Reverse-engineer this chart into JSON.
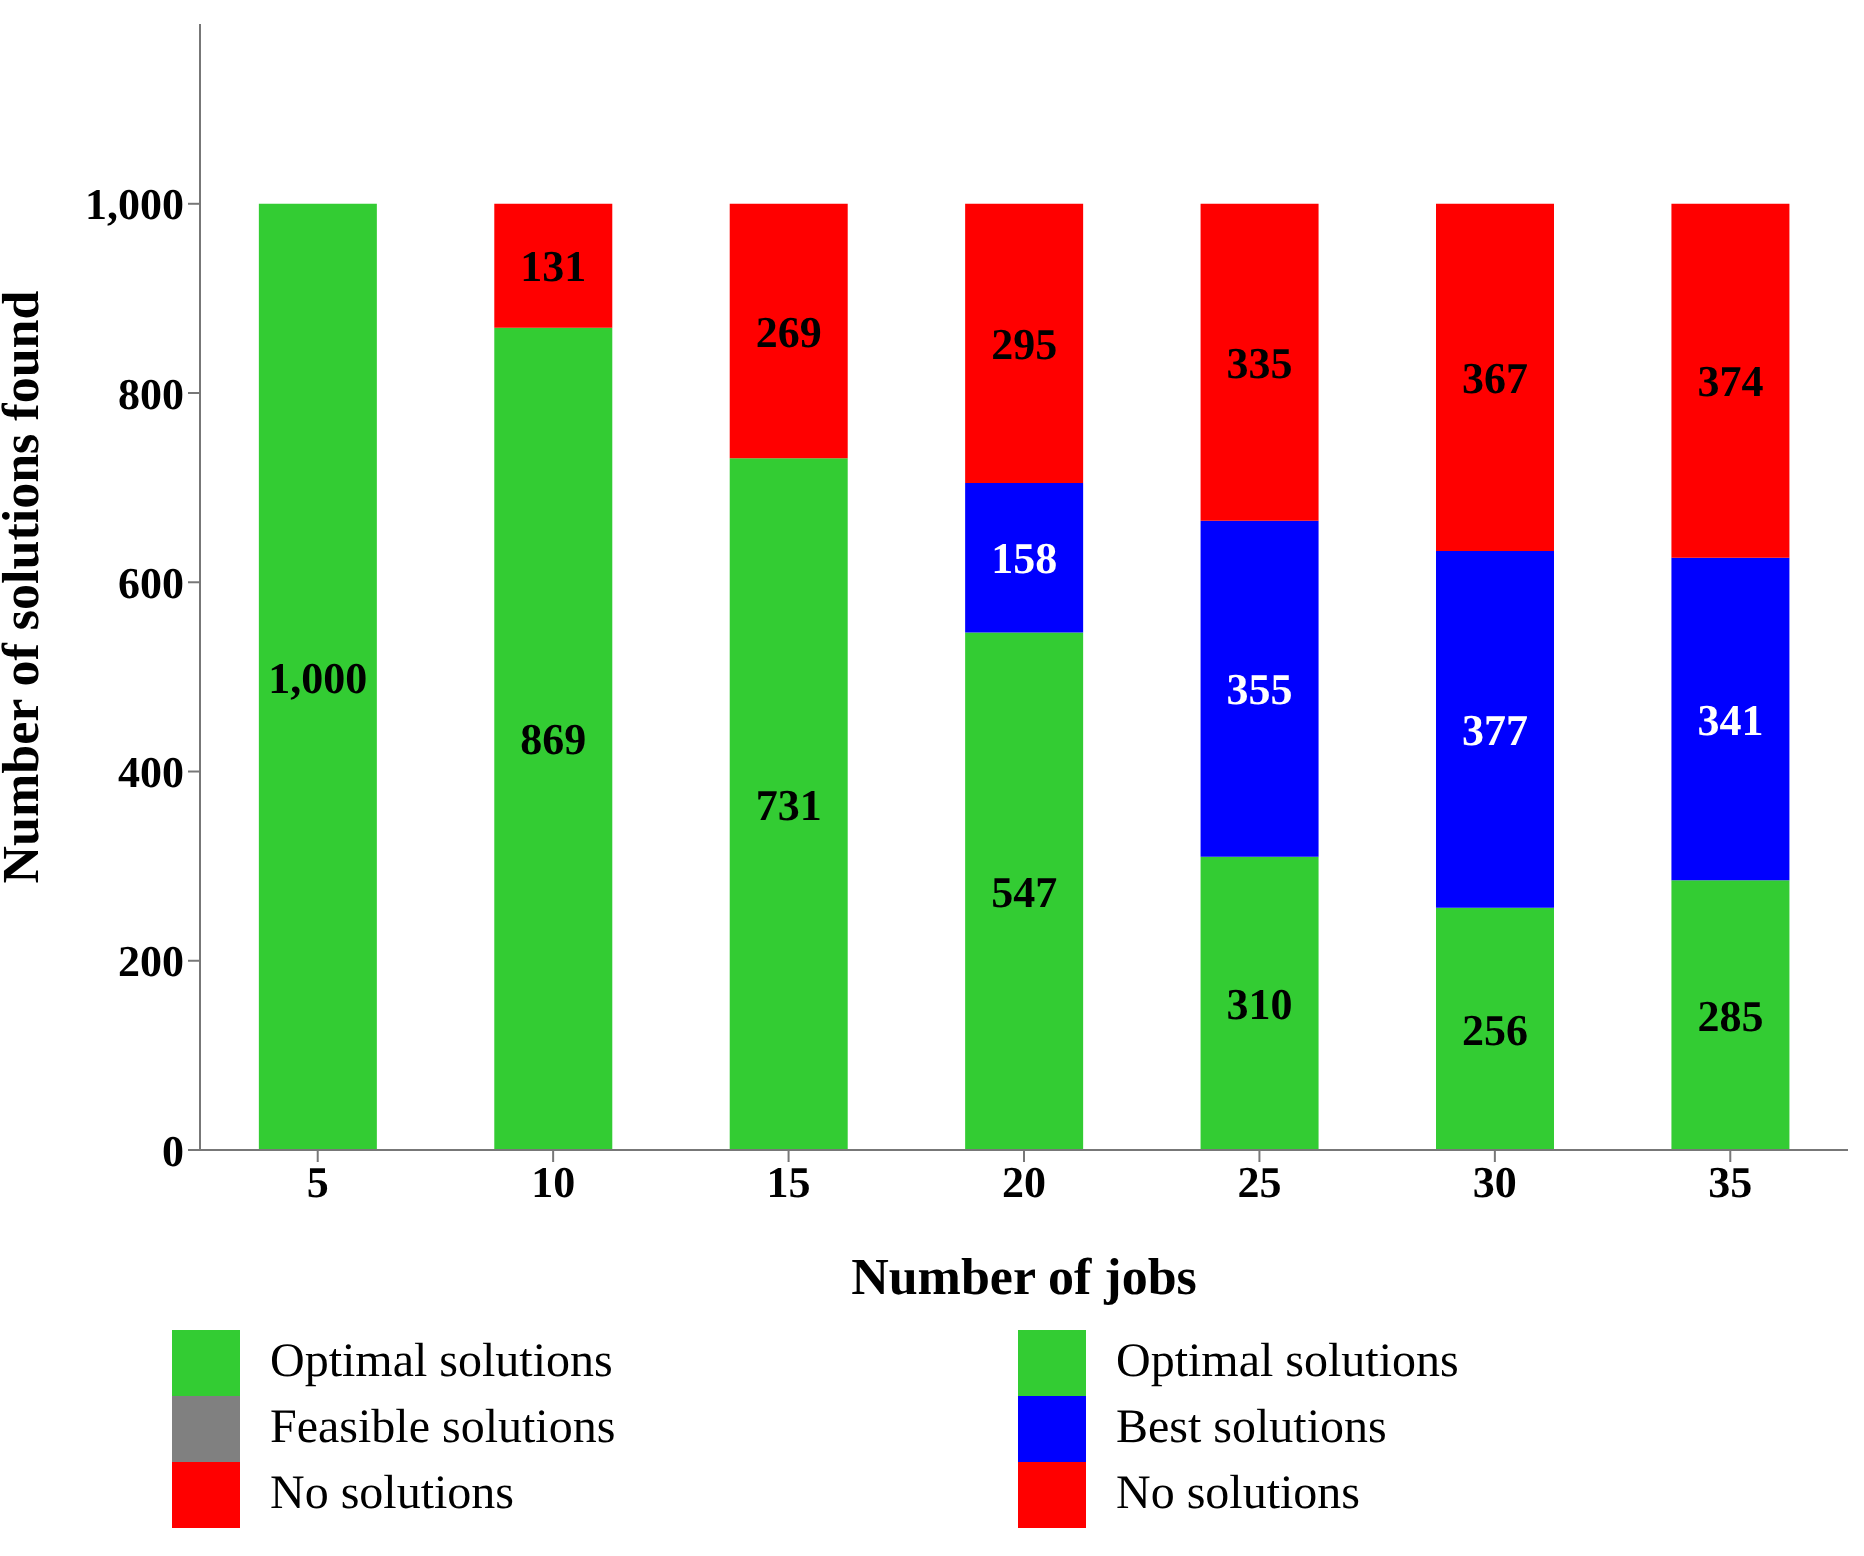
{
  "chart_data": {
    "type": "bar",
    "stacked": true,
    "xlabel": "Number of jobs",
    "ylabel": "Number of solutions found",
    "categories": [
      "5",
      "10",
      "15",
      "20",
      "25",
      "30",
      "35"
    ],
    "series": [
      {
        "name": "Optimal solutions",
        "color": "#33cc33",
        "values": [
          1000,
          869,
          731,
          null,
          null,
          null,
          null
        ],
        "value_labels": [
          "1,000",
          "869",
          "731",
          null,
          null,
          null,
          null
        ]
      },
      {
        "name": "Feasible solutions",
        "color": "#808080",
        "values": [
          null,
          null,
          null,
          null,
          null,
          null,
          null
        ]
      },
      {
        "name": "No solutions",
        "color": "#ff0000",
        "values": [
          null,
          131,
          269,
          null,
          null,
          null,
          null
        ],
        "value_labels": [
          null,
          "131",
          "269",
          null,
          null,
          null,
          null
        ]
      },
      {
        "name": "Optimal solutions",
        "color": "#33cc33",
        "values": [
          null,
          null,
          null,
          547,
          310,
          256,
          285
        ],
        "value_labels": [
          null,
          null,
          null,
          "547",
          "310",
          "256",
          "285"
        ]
      },
      {
        "name": "Best solutions",
        "color": "#0000ff",
        "values": [
          null,
          null,
          null,
          158,
          355,
          377,
          341
        ],
        "value_labels": [
          null,
          null,
          null,
          "158",
          "355",
          "377",
          "341"
        ]
      },
      {
        "name": "No solutions",
        "color": "#ff0000",
        "values": [
          null,
          null,
          null,
          295,
          335,
          367,
          374
        ],
        "value_labels": [
          null,
          null,
          null,
          "295",
          "335",
          "367",
          "374"
        ]
      }
    ],
    "ylim": [
      0,
      1190
    ],
    "yticks": [
      0,
      200,
      400,
      600,
      800,
      {
        "value": 1000,
        "label": "1,000"
      }
    ],
    "legend": "bottom",
    "grid": false
  }
}
